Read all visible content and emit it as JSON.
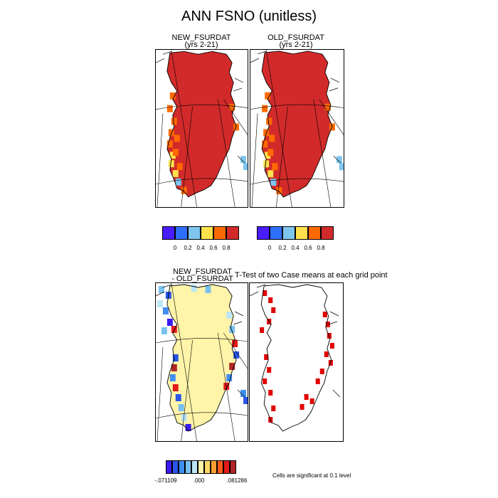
{
  "title": "ANN FSNO (unitless)",
  "panels": {
    "new": {
      "line1": "NEW_FSURDAT",
      "line2": "(yrs 2-21)"
    },
    "old": {
      "line1": "OLD_FSURDAT",
      "line2": "(yrs 2-21)"
    },
    "diff": {
      "line1": "NEW_FSURDAT",
      "line2": "- OLD_FSURDAT"
    },
    "ttest": {
      "title": "T-Test of two Case means at each grid point"
    }
  },
  "colors": {
    "abs_scale": [
      "#4a1dff",
      "#2f6fff",
      "#7ec6ef",
      "#ffe14d",
      "#ff6a00",
      "#d22a2a"
    ],
    "diff_scale": [
      "#3a1cf0",
      "#2a55e8",
      "#3f8ff2",
      "#77c1f0",
      "#bde6f7",
      "#fff4a8",
      "#ffd966",
      "#ff9e33",
      "#ff5a1a",
      "#e41a1a",
      "#b02525"
    ],
    "significant": "#e00000"
  },
  "chart_data": [
    {
      "type": "heatmap",
      "name": "NEW_FSURDAT",
      "subtitle": "(yrs 2-21)",
      "colorbar_ticks": [
        "0",
        "0.2",
        "0.4",
        "0.6",
        "0.8"
      ],
      "colorbar_range": [
        0,
        1
      ],
      "dominant_value": 0.9
    },
    {
      "type": "heatmap",
      "name": "OLD_FSURDAT",
      "subtitle": "(yrs 2-21)",
      "colorbar_ticks": [
        "0",
        "0.2",
        "0.4",
        "0.6",
        "0.8"
      ],
      "colorbar_range": [
        0,
        1
      ],
      "dominant_value": 0.9
    },
    {
      "type": "heatmap",
      "name": "NEW_FSURDAT - OLD_FSURDAT",
      "colorbar_ticks": [
        "-.071109",
        ".000",
        ".081286"
      ],
      "colorbar_range": [
        -0.071109,
        0.081286
      ],
      "dominant_value": 0.0
    },
    {
      "type": "heatmap",
      "name": "T-Test of two Case means at each grid point",
      "note": "Cells are significant at 0.1 level",
      "significance_level": 0.1
    }
  ]
}
